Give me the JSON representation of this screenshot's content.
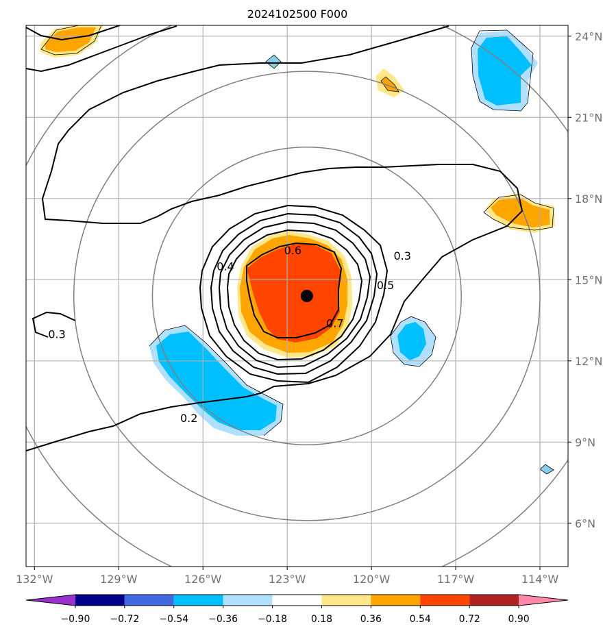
{
  "title": "2024102500 F000",
  "map": {
    "lon_range": [
      -132.3,
      -113.0
    ],
    "lat_range": [
      4.4,
      24.4
    ],
    "lon_ticks": [
      {
        "value": -132,
        "label": "132°W"
      },
      {
        "value": -129,
        "label": "129°W"
      },
      {
        "value": -126,
        "label": "126°W"
      },
      {
        "value": -123,
        "label": "123°W"
      },
      {
        "value": -120,
        "label": "120°W"
      },
      {
        "value": -117,
        "label": "117°W"
      },
      {
        "value": -114,
        "label": "114°W"
      }
    ],
    "lat_ticks": [
      {
        "value": 24,
        "label": "24°N"
      },
      {
        "value": 21,
        "label": "21°N"
      },
      {
        "value": 18,
        "label": "18°N"
      },
      {
        "value": 15,
        "label": "15°N"
      },
      {
        "value": 12,
        "label": "12°N"
      },
      {
        "value": 9,
        "label": "9°N"
      },
      {
        "value": 6,
        "label": "6°N"
      }
    ],
    "storm_center": {
      "lon": -122.3,
      "lat": 14.4
    },
    "range_ring_radii_deg": [
      5.5,
      8.3,
      11.1
    ],
    "colors": {
      "grid": "#b0b0b0",
      "ring": "#808080",
      "contour": "#000000"
    },
    "contour_labels": [
      {
        "text": "0.6",
        "lon": -122.8,
        "lat": 16.1
      },
      {
        "text": "0.4",
        "lon": -125.2,
        "lat": 15.5
      },
      {
        "text": "0.3",
        "lon": -118.9,
        "lat": 15.9
      },
      {
        "text": "0.5",
        "lon": -119.5,
        "lat": 14.8
      },
      {
        "text": "0.7",
        "lon": -121.3,
        "lat": 13.4
      },
      {
        "text": "0.3",
        "lon": -131.2,
        "lat": 13.0
      },
      {
        "text": "0.2",
        "lon": -126.5,
        "lat": 9.9
      }
    ]
  },
  "colorbar": {
    "colors": [
      "#9932cc",
      "#00008b",
      "#4169e1",
      "#00bfff",
      "#b0e0ff",
      "#ffffff",
      "#ffe78a",
      "#ffa500",
      "#ff4500",
      "#b22222",
      "#ff88aa"
    ],
    "tick_labels": [
      "−0.90",
      "−0.72",
      "−0.54",
      "−0.36",
      "−0.18",
      "0.18",
      "0.36",
      "0.54",
      "0.72",
      "0.90"
    ]
  }
}
